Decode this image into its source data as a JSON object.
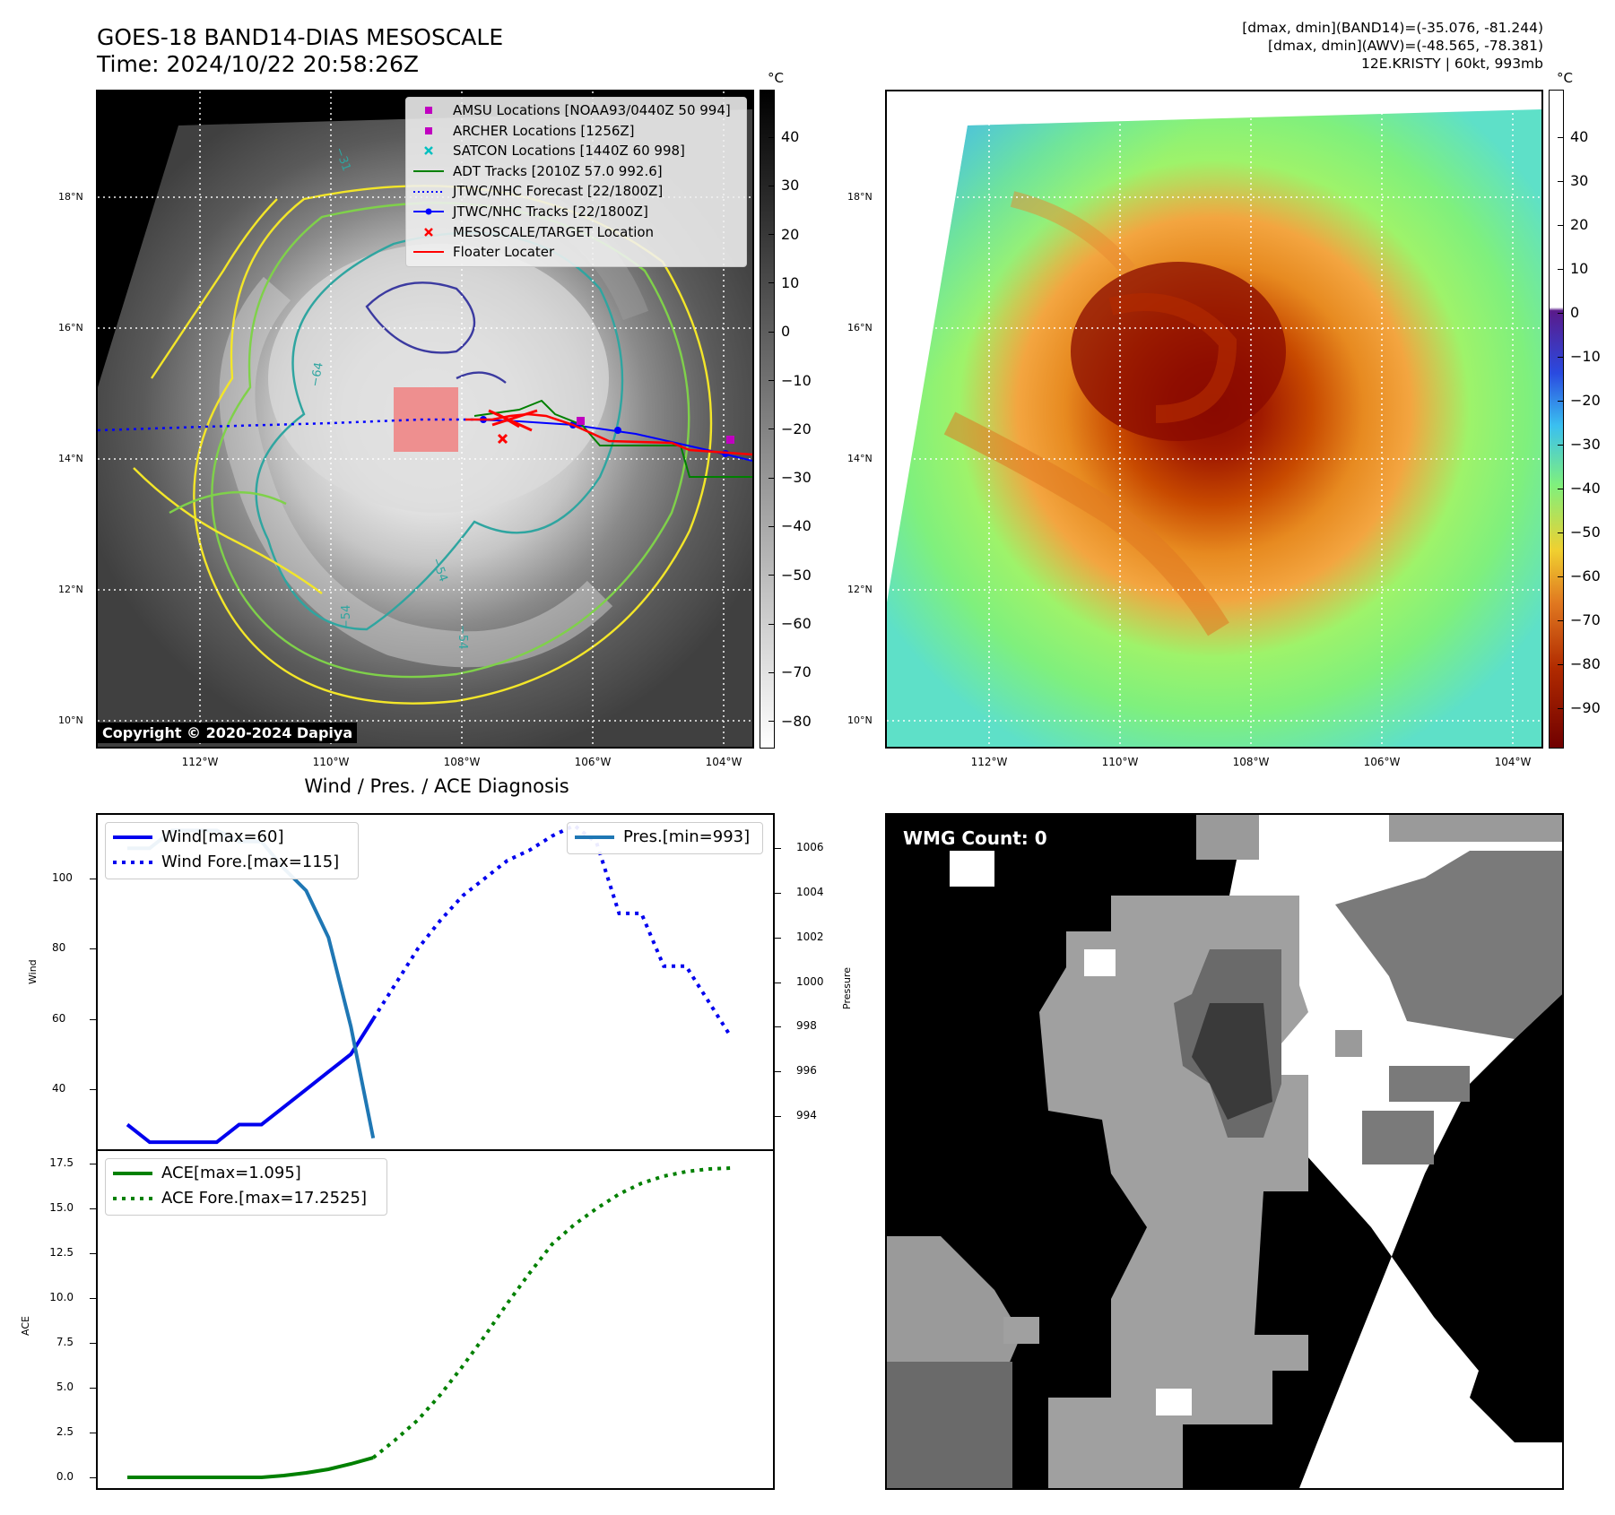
{
  "header": {
    "title": "GOES-18 BAND14-DIAS MESOSCALE",
    "time": "Time: 2024/10/22 20:58:26Z",
    "info_line1": "[dmax, dmin](BAND14)=(-35.076, -81.244)",
    "info_line2": "[dmax, dmin](AWV)=(-48.565, -78.381)",
    "info_line3": "12E.KRISTY | 60kt, 993mb"
  },
  "map_axes": {
    "lat_labels": [
      "18°N",
      "16°N",
      "14°N",
      "12°N",
      "10°N"
    ],
    "lon_labels": [
      "112°W",
      "110°W",
      "108°W",
      "106°W",
      "104°W"
    ]
  },
  "band14_panel": {
    "unit": "°C",
    "colorbar_ticks": [
      "40",
      "30",
      "20",
      "10",
      "0",
      "−10",
      "−20",
      "−30",
      "−40",
      "−50",
      "−60",
      "−70",
      "−80"
    ],
    "contour_labels": [
      "−31",
      "−64",
      "−54",
      "−54",
      "−54"
    ],
    "copyright": "Copyright © 2020-2024 Dapiya",
    "legend": [
      {
        "label": "AMSU Locations [NOAA93/0440Z 50 994]",
        "color": "#c000c0",
        "symbol": "square"
      },
      {
        "label": "ARCHER Locations [1256Z]",
        "color": "#c000c0",
        "symbol": "square"
      },
      {
        "label": "SATCON Locations [1440Z 60 998]",
        "color": "#00c0c0",
        "symbol": "x"
      },
      {
        "label": "ADT Tracks [2010Z 57.0 992.6]",
        "color": "#008000",
        "symbol": "line"
      },
      {
        "label": "JTWC/NHC Forecast [22/1800Z]",
        "color": "#0000ff",
        "symbol": "dotted"
      },
      {
        "label": "JTWC/NHC Tracks [22/1800Z]",
        "color": "#0000ff",
        "symbol": "line-dot"
      },
      {
        "label": "MESOSCALE/TARGET Location",
        "color": "#ff0000",
        "symbol": "x"
      },
      {
        "label": "Floater Locater",
        "color": "#ff0000",
        "symbol": "line"
      }
    ]
  },
  "awv_panel": {
    "unit": "°C",
    "colorbar_ticks": [
      "40",
      "30",
      "20",
      "10",
      "0",
      "−10",
      "−20",
      "−30",
      "−40",
      "−50",
      "−60",
      "−70",
      "−80",
      "−90"
    ]
  },
  "wmg_panel": {
    "label": "WMG Count: 0"
  },
  "chart_data": [
    {
      "type": "line",
      "title": "Wind / Pres. / ACE Diagnosis",
      "xlabel": "",
      "ylabel": "Wind",
      "y2label": "Pressure",
      "ylim": [
        23,
        118
      ],
      "y2lim": [
        992.5,
        1007.5
      ],
      "yticks": [
        40,
        60,
        80,
        100
      ],
      "y2ticks": [
        994,
        996,
        998,
        1000,
        1002,
        1004,
        1006
      ],
      "x_index_range": [
        0,
        27
      ],
      "series": [
        {
          "name": "Wind[max=60]",
          "axis": "left",
          "style": "solid",
          "color": "#0000ee",
          "x": [
            0,
            1,
            2,
            3,
            4,
            5,
            6,
            7,
            8,
            9,
            10,
            11
          ],
          "values": [
            30,
            25,
            25,
            25,
            25,
            30,
            30,
            35,
            40,
            45,
            50,
            60
          ]
        },
        {
          "name": "Wind Fore.[max=115]",
          "axis": "left",
          "style": "dotted",
          "color": "#0000ee",
          "x": [
            11,
            12,
            13,
            14,
            15,
            16,
            17,
            18,
            19,
            20,
            21,
            22,
            23,
            24,
            25,
            26,
            27
          ],
          "values": [
            60,
            70,
            80,
            88,
            95,
            100,
            105,
            108,
            112,
            115,
            110,
            90,
            90,
            75,
            75,
            65,
            55
          ]
        },
        {
          "name": "Pres.[min=993]",
          "axis": "right",
          "style": "solid",
          "color": "#1f77b4",
          "x": [
            0,
            1,
            2,
            3,
            4,
            5,
            6,
            7,
            8,
            9,
            10,
            11
          ],
          "values": [
            1006,
            1006,
            1006.8,
            1006.8,
            1006.8,
            1006.3,
            1006.3,
            1005.1,
            1004.1,
            1002,
            998,
            993
          ]
        }
      ],
      "legend_left": [
        "Wind[max=60]",
        "Wind Fore.[max=115]"
      ],
      "legend_right": [
        "Pres.[min=993]"
      ]
    },
    {
      "type": "line",
      "title": "",
      "xlabel": "",
      "ylabel": "ACE",
      "ylim": [
        -0.6,
        18.2
      ],
      "yticks": [
        0.0,
        2.5,
        5.0,
        7.5,
        10.0,
        12.5,
        15.0,
        17.5
      ],
      "x_index_range": [
        0,
        27
      ],
      "series": [
        {
          "name": "ACE[max=1.095]",
          "style": "solid",
          "color": "#008000",
          "x": [
            0,
            1,
            2,
            3,
            4,
            5,
            6,
            7,
            8,
            9,
            10,
            11
          ],
          "values": [
            0,
            0,
            0,
            0,
            0,
            0,
            0,
            0.1,
            0.25,
            0.45,
            0.75,
            1.095
          ]
        },
        {
          "name": "ACE Fore.[max=17.2525]",
          "style": "dotted",
          "color": "#008000",
          "x": [
            11,
            12,
            13,
            14,
            15,
            16,
            17,
            18,
            19,
            20,
            21,
            22,
            23,
            24,
            25,
            26,
            27
          ],
          "values": [
            1.095,
            2.1,
            3.2,
            4.6,
            6.2,
            7.9,
            9.7,
            11.4,
            13.0,
            14.1,
            15.0,
            15.8,
            16.4,
            16.8,
            17.05,
            17.2,
            17.25
          ]
        }
      ],
      "legend": [
        "ACE[max=1.095]",
        "ACE Fore.[max=17.2525]"
      ]
    }
  ]
}
